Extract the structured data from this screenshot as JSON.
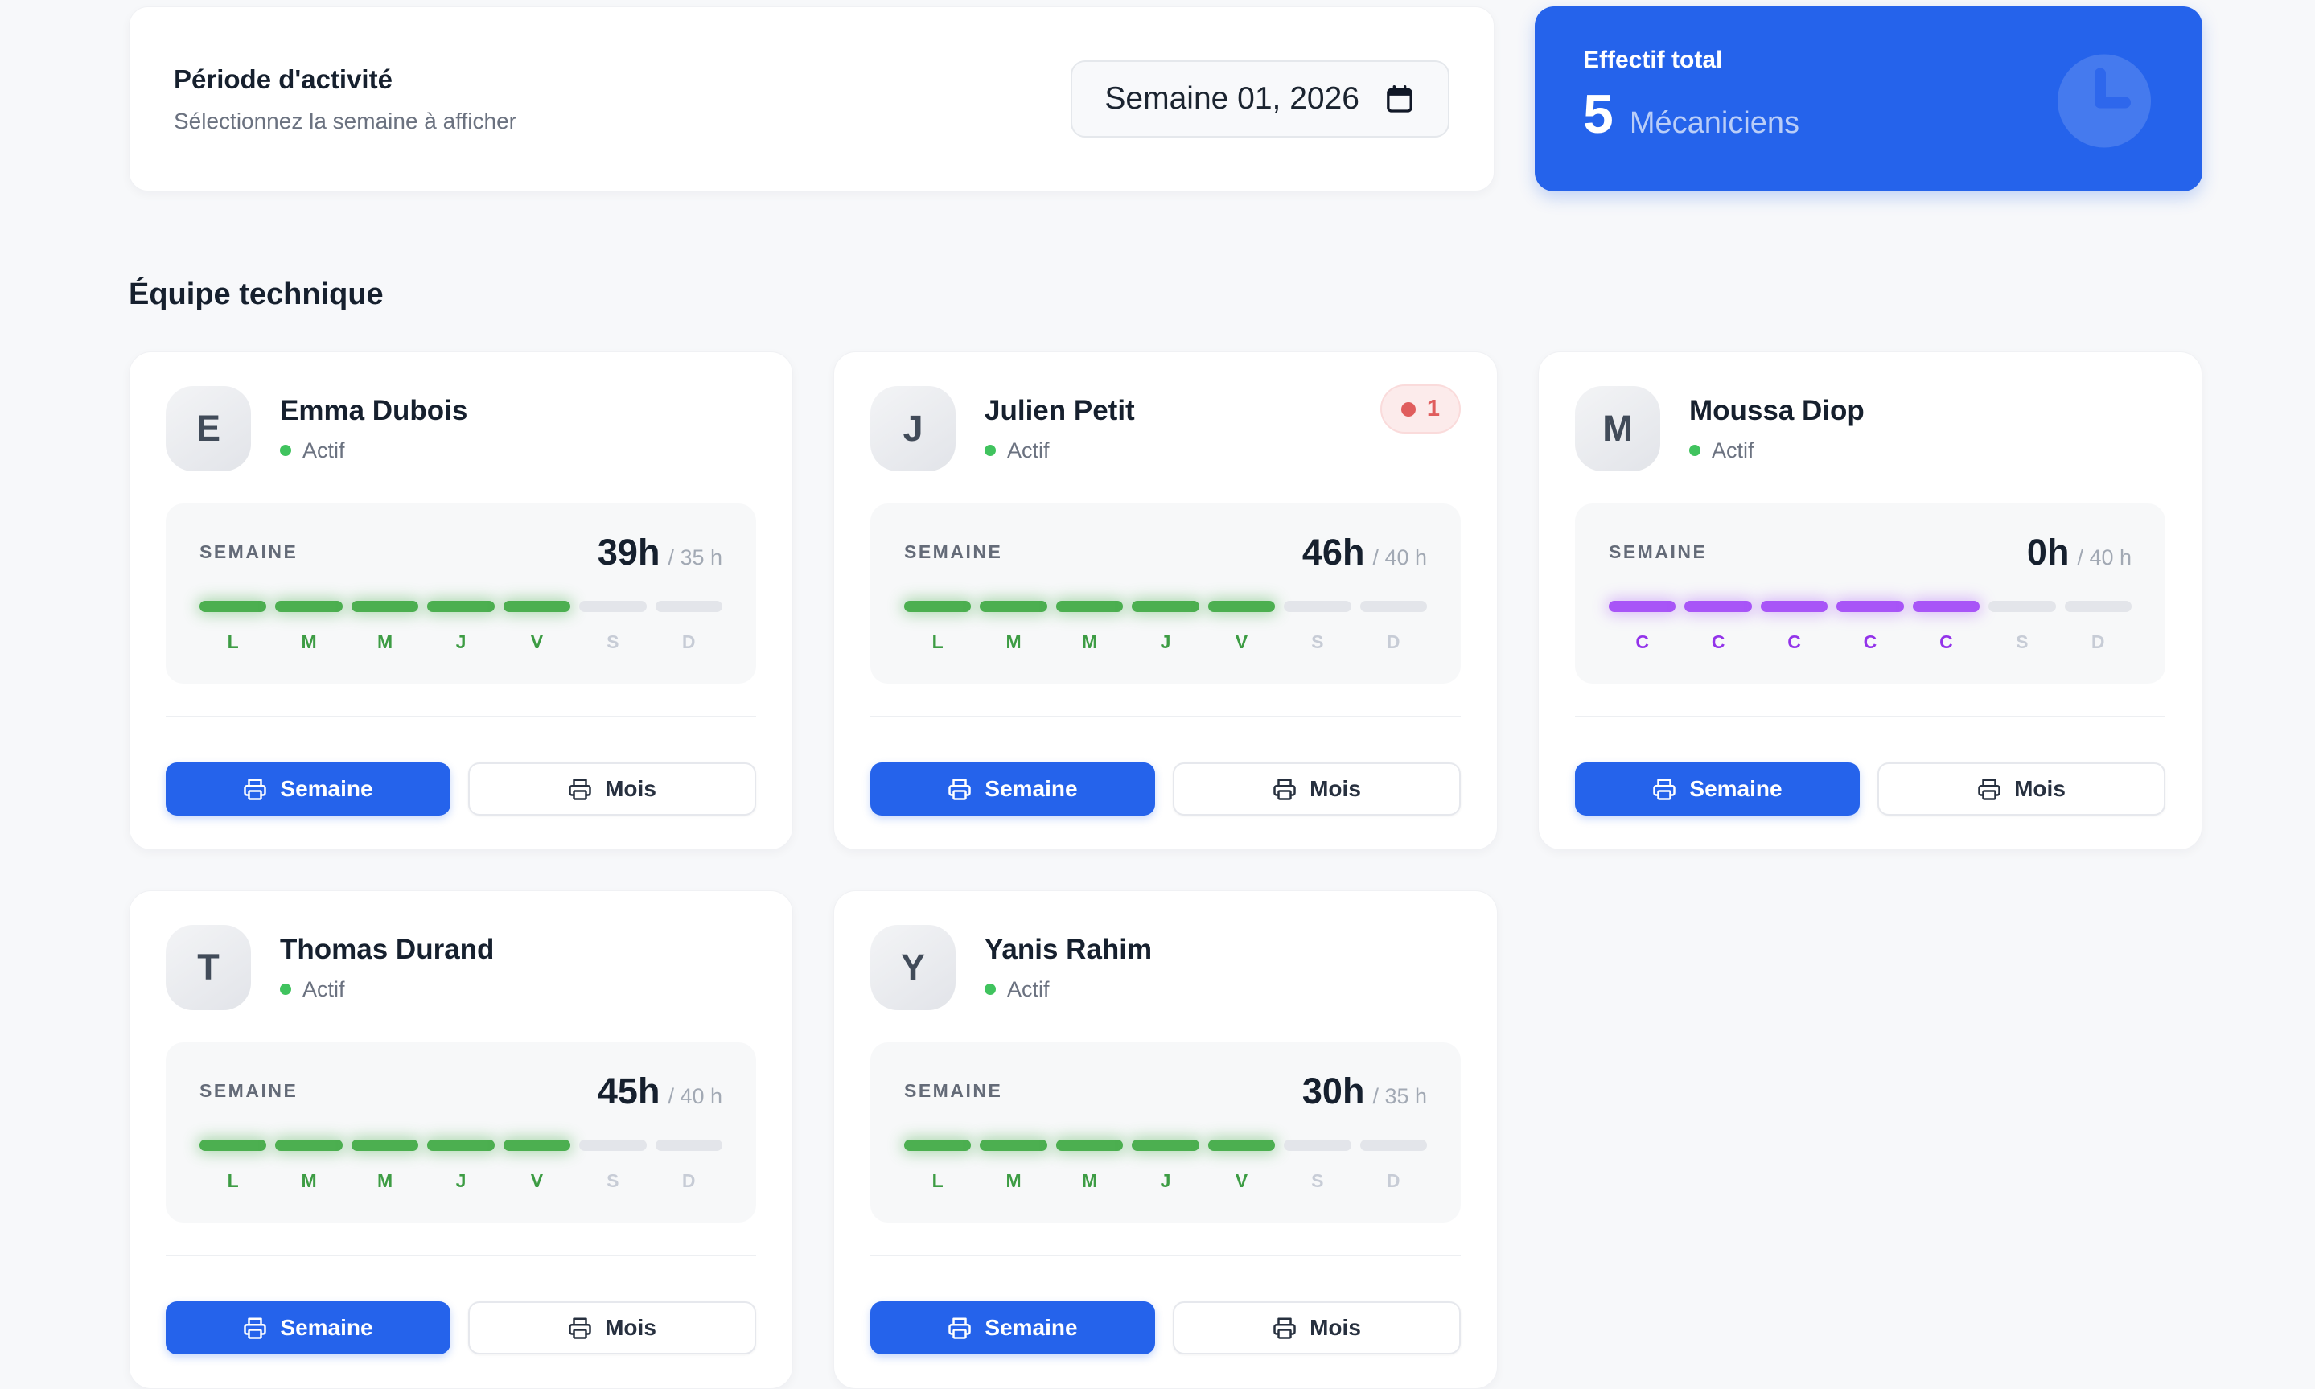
{
  "period_card": {
    "title": "Période d'activité",
    "subtitle": "Sélectionnez la semaine à afficher",
    "date_value": "Semaine 01, 2026"
  },
  "stat_card": {
    "label": "Effectif total",
    "value": "5",
    "unit": "Mécaniciens"
  },
  "section_title": "Équipe technique",
  "labels": {
    "week_caps": "SEMAINE"
  },
  "buttons": {
    "week": "Semaine",
    "month": "Mois"
  },
  "colors": {
    "accent_blue": "#2563eb",
    "work_green": "#4caf50",
    "leave_purple": "#a855f7",
    "alert_red": "#e05d5d",
    "status_green": "#40c35e",
    "page_bg": "#f7f8fa"
  },
  "icons": {
    "date_picker": "calendar-icon",
    "stat_card": "clock-icon",
    "print_buttons": "printer-icon",
    "badge": "alert-dot-icon"
  },
  "employees": [
    {
      "initial": "E",
      "name": "Emma Dubois",
      "status": "Actif",
      "hours": "39h",
      "quota": "/ 35 h",
      "badge": null,
      "days": [
        {
          "label": "L",
          "type": "work"
        },
        {
          "label": "M",
          "type": "work"
        },
        {
          "label": "M",
          "type": "work"
        },
        {
          "label": "J",
          "type": "work"
        },
        {
          "label": "V",
          "type": "work"
        },
        {
          "label": "S",
          "type": "off"
        },
        {
          "label": "D",
          "type": "off"
        }
      ]
    },
    {
      "initial": "J",
      "name": "Julien Petit",
      "status": "Actif",
      "hours": "46h",
      "quota": "/ 40 h",
      "badge": "1",
      "days": [
        {
          "label": "L",
          "type": "work"
        },
        {
          "label": "M",
          "type": "work"
        },
        {
          "label": "M",
          "type": "work"
        },
        {
          "label": "J",
          "type": "work"
        },
        {
          "label": "V",
          "type": "work"
        },
        {
          "label": "S",
          "type": "off"
        },
        {
          "label": "D",
          "type": "off"
        }
      ]
    },
    {
      "initial": "M",
      "name": "Moussa Diop",
      "status": "Actif",
      "hours": "0h",
      "quota": "/ 40 h",
      "badge": null,
      "days": [
        {
          "label": "C",
          "type": "leave"
        },
        {
          "label": "C",
          "type": "leave"
        },
        {
          "label": "C",
          "type": "leave"
        },
        {
          "label": "C",
          "type": "leave"
        },
        {
          "label": "C",
          "type": "leave"
        },
        {
          "label": "S",
          "type": "off"
        },
        {
          "label": "D",
          "type": "off"
        }
      ]
    },
    {
      "initial": "T",
      "name": "Thomas Durand",
      "status": "Actif",
      "hours": "45h",
      "quota": "/ 40 h",
      "badge": null,
      "days": [
        {
          "label": "L",
          "type": "work"
        },
        {
          "label": "M",
          "type": "work"
        },
        {
          "label": "M",
          "type": "work"
        },
        {
          "label": "J",
          "type": "work"
        },
        {
          "label": "V",
          "type": "work"
        },
        {
          "label": "S",
          "type": "off"
        },
        {
          "label": "D",
          "type": "off"
        }
      ]
    },
    {
      "initial": "Y",
      "name": "Yanis Rahim",
      "status": "Actif",
      "hours": "30h",
      "quota": "/ 35 h",
      "badge": null,
      "days": [
        {
          "label": "L",
          "type": "work"
        },
        {
          "label": "M",
          "type": "work"
        },
        {
          "label": "M",
          "type": "work"
        },
        {
          "label": "J",
          "type": "work"
        },
        {
          "label": "V",
          "type": "work"
        },
        {
          "label": "S",
          "type": "off"
        },
        {
          "label": "D",
          "type": "off"
        }
      ]
    }
  ]
}
